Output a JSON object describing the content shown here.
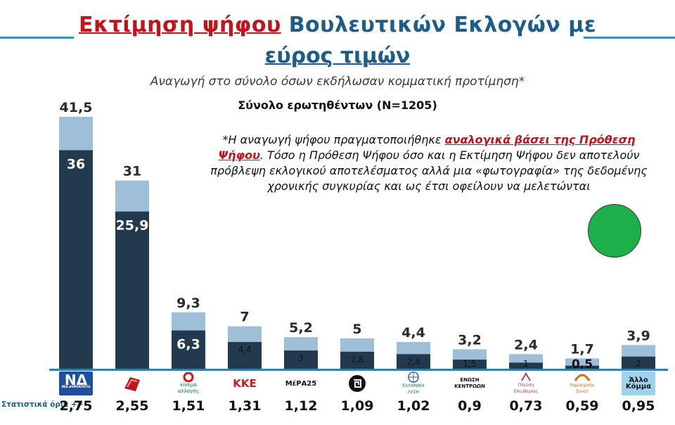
{
  "title": {
    "part_red": "Εκτίμηση ψήφου",
    "part_blue": "Βουλευτικών Εκλογών με",
    "line2": "εύρος τιμών"
  },
  "subtitle": "Αναγωγή στο σύνολο όσων εκδήλωσαν κομματική προτίμηση*",
  "sample_label": "Σύνολο ερωτηθέντων (N=1205)",
  "note": {
    "prefix": "*Η αναγωγή ψήφου πραγματοποιήθηκε",
    "highlight": "αναλογικά βάσει της Πρόθεση Ψήφου",
    "suffix": ". Τόσο η Πρόθεση Ψήφου όσο και η Εκτίμηση Ψήφου δεν αποτελούν πρόβλεψη εκλογικού αποτελέσματος αλλά μια «φωτογραφία» της δεδομένης χρονικής συγκυρίας και ως έτσι οφείλουν να μελετώνται"
  },
  "stat_error_label": "Στατιστικά όρια +/-",
  "colors": {
    "base_bar": "#233a4e",
    "upper_bar": "#9ebfd7",
    "indicator": "#1db04a",
    "title_red": "#c0161b",
    "title_blue": "#1c5d8c"
  },
  "parties": [
    {
      "logo_text": "ΝΔ",
      "logo_sub": "ΝΕΑ ΔΗΜΟΚΡΑΤΙΑ",
      "logo_icon": "nd-logo-icon"
    },
    {
      "logo_text": "",
      "logo_sub": "",
      "logo_icon": "syriza-logo-icon"
    },
    {
      "logo_text": "",
      "logo_sub": "κίνημα αλλαγής",
      "logo_icon": "kinal-logo-icon"
    },
    {
      "logo_text": "ΚΚΕ",
      "logo_sub": "",
      "logo_icon": "kke-logo-icon"
    },
    {
      "logo_text": "ΜέΡΑ25",
      "logo_sub": "",
      "logo_icon": "mera25-logo-icon"
    },
    {
      "logo_text": "",
      "logo_sub": "",
      "logo_icon": "meander-logo-icon"
    },
    {
      "logo_text": "",
      "logo_sub": "ΕΛΛΗΝΙΚΗ ΛΥΣΗ",
      "logo_icon": "elliniki-lysi-logo-icon"
    },
    {
      "logo_text": "ΕΝΩΣΗ ΚΕΝΤΡΩΩΝ",
      "logo_sub": "",
      "logo_icon": "enosi-kentroon-logo-icon"
    },
    {
      "logo_text": "",
      "logo_sub": "Πλεύση Ελευθερίας",
      "logo_icon": "plefsi-logo-icon"
    },
    {
      "logo_text": "",
      "logo_sub": "δημιουργία, ξανά!",
      "logo_icon": "dimiourgia-logo-icon"
    },
    {
      "logo_text": "Άλλο Κόμμα",
      "logo_sub": "",
      "logo_icon": "other-party-logo-icon"
    }
  ],
  "chart_data": {
    "type": "bar",
    "stacked": true,
    "categories": [
      "ΝΔ",
      "ΣΥΡΙΖΑ",
      "ΚΙΝΑΛ",
      "ΚΚΕ",
      "ΜέΡΑ25",
      "Μαίανδρος",
      "Ελληνική Λύση",
      "Ένωση Κεντρώων",
      "Πλεύση Ελευθερίας",
      "Δημιουργία Ξανά",
      "Άλλο Κόμμα"
    ],
    "lower_values": [
      36,
      25.9,
      6.3,
      4.4,
      3,
      2.8,
      2.4,
      1.5,
      1,
      0.5,
      2
    ],
    "lower_labels": [
      "36",
      "25,9",
      "6,3",
      "4,4",
      "3",
      "2,8",
      "2,4",
      "1,5",
      "1",
      "0,5",
      "2"
    ],
    "upper_values": [
      41.5,
      31,
      9.3,
      7,
      5.2,
      5,
      4.4,
      3.2,
      2.4,
      1.7,
      3.9
    ],
    "upper_labels": [
      "41,5",
      "31",
      "9,3",
      "7",
      "5,2",
      "5",
      "4,4",
      "3,2",
      "2,4",
      "1,7",
      "3,9"
    ],
    "stat_errors": [
      "2,75",
      "2,55",
      "1,51",
      "1,31",
      "1,12",
      "1,09",
      "1,02",
      "0,9",
      "0,73",
      "0,59",
      "0,95"
    ],
    "ylim": [
      0,
      45
    ]
  }
}
